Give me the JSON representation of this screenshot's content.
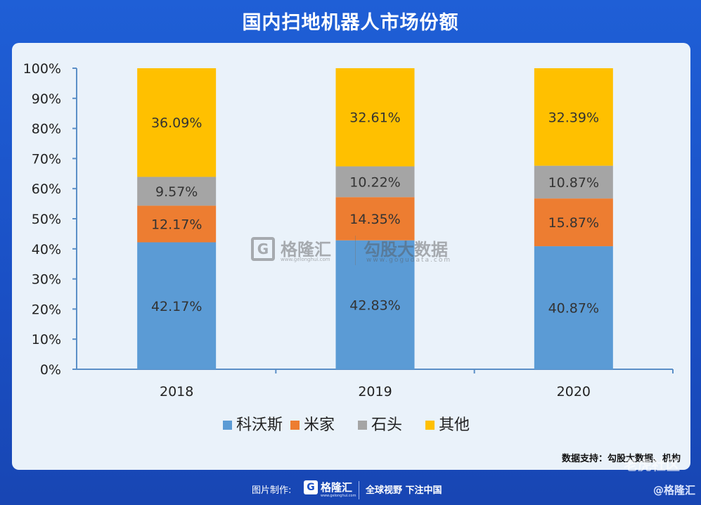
{
  "title": "国内扫地机器人市场份额",
  "chart_data": {
    "type": "bar",
    "stacked": true,
    "categories": [
      "2018",
      "2019",
      "2020"
    ],
    "series": [
      {
        "name": "科沃斯",
        "color": "#5b9bd5",
        "values": [
          42.17,
          42.83,
          40.87
        ],
        "labels": [
          "42.17%",
          "42.83%",
          "40.87%"
        ]
      },
      {
        "name": "米家",
        "color": "#ed7d31",
        "values": [
          12.17,
          14.35,
          15.87
        ],
        "labels": [
          "12.17%",
          "14.35%",
          "15.87%"
        ]
      },
      {
        "name": "石头",
        "color": "#a5a5a5",
        "values": [
          9.57,
          10.22,
          10.87
        ],
        "labels": [
          "9.57%",
          "10.22%",
          "10.87%"
        ]
      },
      {
        "name": "其他",
        "color": "#ffc000",
        "values": [
          36.09,
          32.61,
          32.39
        ],
        "labels": [
          "36.09%",
          "32.61%",
          "32.39%"
        ]
      }
    ],
    "yticks": [
      "0%",
      "10%",
      "20%",
      "30%",
      "40%",
      "50%",
      "60%",
      "70%",
      "80%",
      "90%",
      "100%"
    ],
    "ylim": [
      0,
      100
    ],
    "legend_position": "bottom"
  },
  "source": "数据支持：勾股大数据、机构",
  "watermark": {
    "logo_letter": "G",
    "name": "格隆汇",
    "url": "www.gelonghui.com",
    "name2": "勾股大数据",
    "url2": "www.gogudata.com"
  },
  "footer": {
    "label": "图片制作:",
    "logo_letter": "G",
    "brand": "格隆汇",
    "brand_url": "www.gelonghui.com",
    "slogan": "全球视野 下注中国",
    "corner": "@格隆汇"
  },
  "overlay_text": "老虎社区"
}
